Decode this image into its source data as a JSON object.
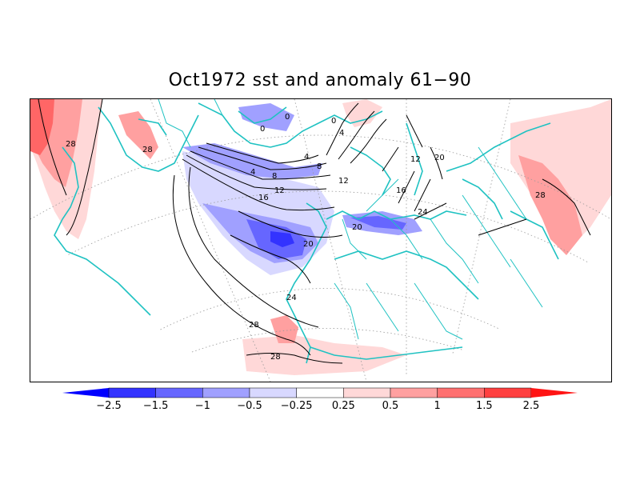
{
  "title": "Oct1972 sst and anomaly 61−90",
  "colors": {
    "coast": "#1fc2c2",
    "grid": "#999999",
    "contour": "#000000",
    "anom_neg_strong": "#3333ff",
    "anom_neg_med": "#6666ff",
    "anom_neg_light": "#a0a0ff",
    "anom_neg_faint": "#d8d8ff",
    "anom_pos_faint": "#ffd8d8",
    "anom_pos_light": "#ffa0a0",
    "anom_pos_med": "#ff6666",
    "anom_pos_strong": "#ff3333"
  },
  "colorbar": {
    "bins": [
      "#0000ff",
      "#3333ff",
      "#6666ff",
      "#a0a0ff",
      "#d8d8ff",
      "#ffffff",
      "#ffd8d8",
      "#ffa0a0",
      "#ff7070",
      "#ff4040",
      "#ff1414"
    ],
    "tick_labels": [
      "−2.5",
      "−1.5",
      "−1",
      "−0.5",
      "−0.25",
      "0.25",
      "0.5",
      "1",
      "1.5",
      "2.5"
    ]
  },
  "contour_labels": [
    "28",
    "28",
    "4",
    "8",
    "12",
    "16",
    "20",
    "24",
    "28",
    "28",
    "20",
    "24",
    "16",
    "12",
    "12",
    "8",
    "4",
    "0",
    "0",
    "0",
    "4",
    "28",
    "20"
  ]
}
